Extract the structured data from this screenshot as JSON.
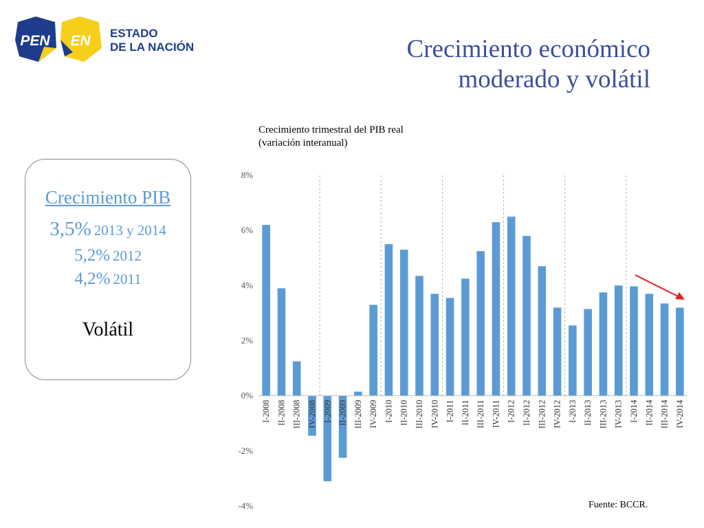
{
  "logo": {
    "pen": "PEN",
    "en": "EN",
    "line1": "ESTADO",
    "line2": "DE LA NACIÓN"
  },
  "title": {
    "line1": "Crecimiento económico",
    "line2": "moderado y volátil"
  },
  "summary": {
    "heading": "Crecimiento PIB",
    "rows": [
      {
        "value": "3,5%",
        "label": "2013 y 2014"
      },
      {
        "value": "5,2%",
        "label": "2012"
      },
      {
        "value": "4,2%",
        "label": "2011"
      }
    ],
    "note": "Volátil"
  },
  "source": "Fuente: BCCR.",
  "colors": {
    "bar": "#5b9bd5",
    "title": "#3d4f9a",
    "arrow": "#e02020",
    "logo_blue": "#1f3c8c",
    "logo_yellow": "#f7cf1b"
  },
  "chart_data": {
    "type": "bar",
    "title": "Crecimiento trimestral del PIB real",
    "subtitle": "(variación interanual)",
    "categories": [
      "I-2008",
      "II-2008",
      "III-2008",
      "IV-2008",
      "I-2009",
      "II-2009",
      "III-2009",
      "IV-2009",
      "I-2010",
      "II-2010",
      "III-2010",
      "IV-2010",
      "I-2011",
      "II-2011",
      "III-2011",
      "IV-2011",
      "I-2012",
      "II-2012",
      "III-2012",
      "IV-2012",
      "I-2013",
      "II-2013",
      "III-2013",
      "IV-2013",
      "I-2014",
      "II-2014",
      "III-2014",
      "IV-2014"
    ],
    "values": [
      6.2,
      3.9,
      1.25,
      -1.45,
      -3.1,
      -2.25,
      0.15,
      3.3,
      5.5,
      5.3,
      4.35,
      3.7,
      3.55,
      4.25,
      5.25,
      6.3,
      6.5,
      5.8,
      4.7,
      3.2,
      2.55,
      3.15,
      3.75,
      4.0,
      3.97,
      3.7,
      3.35,
      3.2
    ],
    "yticks": [
      "-4%",
      "-2%",
      "0%",
      "2%",
      "4%",
      "6%",
      "8%"
    ],
    "ytick_values": [
      -4,
      -2,
      0,
      2,
      4,
      6,
      8
    ],
    "ylim": [
      -4,
      8
    ],
    "year_separators_after": [
      "IV-2008",
      "IV-2009",
      "IV-2010",
      "IV-2011",
      "IV-2012",
      "IV-2013"
    ],
    "grid": false,
    "annotation": "red downward trend arrow over 2014 bars"
  }
}
